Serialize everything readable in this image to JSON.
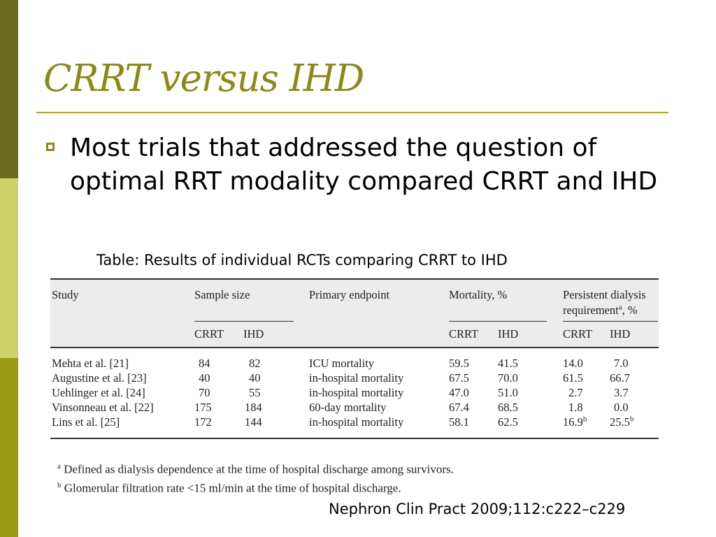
{
  "slide": {
    "title": "CRRT versus IHD",
    "bullet": "Most trials that addressed the question of optimal RRT modality compared CRRT and IHD",
    "caption": "Table: Results of individual RCTs comparing CRRT to IHD",
    "source": "Nephron Clin Pract 2009;112:c222–c229"
  },
  "table": {
    "headers": {
      "study": "Study",
      "sample_size": "Sample size",
      "primary_endpoint": "Primary endpoint",
      "mortality": "Mortality, %",
      "persistent_line1": "Persistent dialysis",
      "persistent_line2_pre": "requirement",
      "persistent_line2_sup": "a",
      "persistent_line2_post": ", %",
      "crrt": "CRRT",
      "ihd": "IHD"
    },
    "rows": [
      {
        "study": "Mehta et al. [21]",
        "size_crrt": "84",
        "size_ihd": "82",
        "endpoint": "ICU mortality",
        "mort_crrt": "59.5",
        "mort_ihd": "41.5",
        "pers_crrt": "14.0",
        "pers_ihd": "7.0"
      },
      {
        "study": "Augustine et al. [23]",
        "size_crrt": "40",
        "size_ihd": "40",
        "endpoint": "in-hospital mortality",
        "mort_crrt": "67.5",
        "mort_ihd": "70.0",
        "pers_crrt": "61.5",
        "pers_ihd": "66.7"
      },
      {
        "study": "Uehlinger et al. [24]",
        "size_crrt": "70",
        "size_ihd": "55",
        "endpoint": "in-hospital mortality",
        "mort_crrt": "47.0",
        "mort_ihd": "51.0",
        "pers_crrt": "2.7",
        "pers_ihd": "3.7"
      },
      {
        "study": "Vinsonneau et al. [22]",
        "size_crrt": "175",
        "size_ihd": "184",
        "endpoint": "60-day mortality",
        "mort_crrt": "67.4",
        "mort_ihd": "68.5",
        "pers_crrt": "1.8",
        "pers_ihd": "0.0"
      },
      {
        "study": "Lins et al. [25]",
        "size_crrt": "172",
        "size_ihd": "144",
        "endpoint": "in-hospital mortality",
        "mort_crrt": "58.1",
        "mort_ihd": "62.5",
        "pers_crrt": "16.9",
        "pers_crrt_sup": "b",
        "pers_ihd": "25.5",
        "pers_ihd_sup": "b"
      }
    ]
  },
  "footnotes": {
    "a_mark": "a",
    "a_text": " Defined as dialysis dependence at the time of hospital discharge among survivors.",
    "b_mark": "b",
    "b_text": " Glomerular filtration rate <15 ml/min at the time of hospital discharge."
  },
  "colors": {
    "title": "#8a8a14",
    "bar_top": "#6b6b1e",
    "bar_mid": "#cdd16a",
    "bar_bottom": "#9c9a12"
  }
}
